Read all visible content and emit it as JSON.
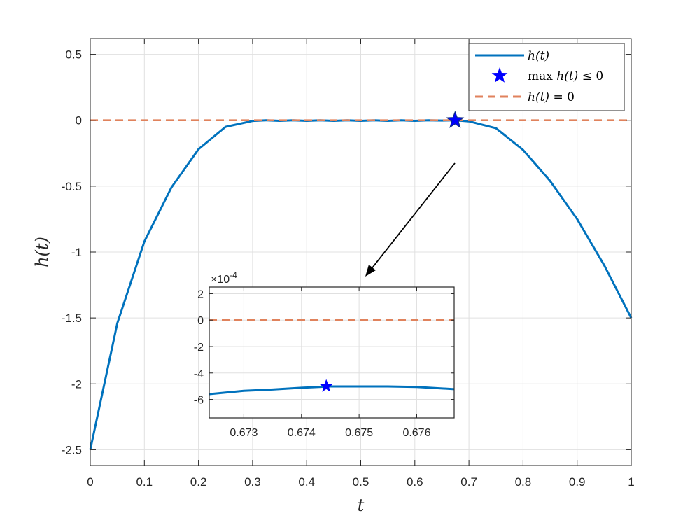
{
  "colors": {
    "curve": "#0072BD",
    "zero_line": "#D95319",
    "star": "#0000FF",
    "grid": "#E0E0E0",
    "axes": "#262626"
  },
  "chart_data": [
    {
      "type": "line",
      "title": "",
      "xlabel": "t",
      "ylabel": "h(t)",
      "xlim": [
        0,
        1
      ],
      "ylim": [
        -2.62,
        0.62
      ],
      "xticks": [
        0,
        0.1,
        0.2,
        0.3,
        0.4,
        0.5,
        0.6,
        0.7,
        0.8,
        0.9,
        1
      ],
      "xtick_labels": [
        "0",
        "0.1",
        "0.2",
        "0.3",
        "0.4",
        "0.5",
        "0.6",
        "0.7",
        "0.8",
        "0.9",
        "1"
      ],
      "yticks": [
        0.5,
        0,
        -0.5,
        -1,
        -1.5,
        -2,
        -2.5
      ],
      "ytick_labels": [
        "0.5",
        "0",
        "-0.5",
        "-1",
        "-1.5",
        "-2",
        "-2.5"
      ],
      "grid": true,
      "legend": {
        "placement": "top-right",
        "entries": [
          {
            "pre": "",
            "math": "h(t)",
            "post": ""
          },
          {
            "pre": "max ",
            "math": "h(t)",
            "post": " ≤ 0"
          },
          {
            "pre": "",
            "math": "h(t)",
            "post": " = 0"
          }
        ]
      },
      "series": [
        {
          "name": "h(t)",
          "style": "solid",
          "x": [
            0,
            0.05,
            0.1,
            0.15,
            0.2,
            0.25,
            0.3,
            0.325,
            0.35,
            0.375,
            0.4,
            0.425,
            0.45,
            0.475,
            0.5,
            0.525,
            0.55,
            0.575,
            0.6,
            0.625,
            0.65,
            0.675,
            0.7,
            0.75,
            0.8,
            0.85,
            0.9,
            0.95,
            1
          ],
          "y": [
            -2.5,
            -1.54,
            -0.92,
            -0.51,
            -0.22,
            -0.05,
            -0.005,
            0.0,
            -0.004,
            0.0,
            -0.004,
            0.0,
            -0.004,
            0.0,
            -0.004,
            0.0,
            -0.004,
            0.0,
            -0.004,
            0.0,
            -0.002,
            0.0,
            -0.008,
            -0.06,
            -0.225,
            -0.46,
            -0.75,
            -1.1,
            -1.5
          ]
        },
        {
          "name": "h(t) = 0",
          "style": "dashed",
          "x": [
            0,
            1
          ],
          "y": [
            0,
            0
          ]
        }
      ],
      "marker": {
        "name": "max h(t) ≤ 0",
        "x": 0.6744,
        "y": -0.0005
      }
    },
    {
      "type": "line",
      "title": "",
      "inset": true,
      "exponent_label": "×10",
      "exponent_power": "-4",
      "xlim": [
        0.6724,
        0.67665
      ],
      "ylim": [
        -7.4,
        2.5
      ],
      "xticks": [
        0.673,
        0.674,
        0.675,
        0.676
      ],
      "xtick_labels": [
        "0.673",
        "0.674",
        "0.675",
        "0.676"
      ],
      "yticks": [
        2,
        0,
        -2,
        -4,
        -6
      ],
      "ytick_labels": [
        "2",
        "0",
        "-2",
        "-4",
        "-6"
      ],
      "grid": true,
      "series": [
        {
          "name": "h(t)",
          "style": "solid",
          "x": [
            0.6724,
            0.673,
            0.6735,
            0.674,
            0.6745,
            0.675,
            0.6755,
            0.676,
            0.67665
          ],
          "y": [
            -5.6,
            -5.35,
            -5.25,
            -5.12,
            -5.02,
            -5.02,
            -5.02,
            -5.06,
            -5.22
          ]
        },
        {
          "name": "h(t) = 0",
          "style": "dashed",
          "x": [
            0.6724,
            0.67665
          ],
          "y": [
            0,
            0
          ]
        }
      ],
      "marker": {
        "name": "max h(t) ≤ 0",
        "x": 0.67443,
        "y": -5.0
      }
    }
  ]
}
